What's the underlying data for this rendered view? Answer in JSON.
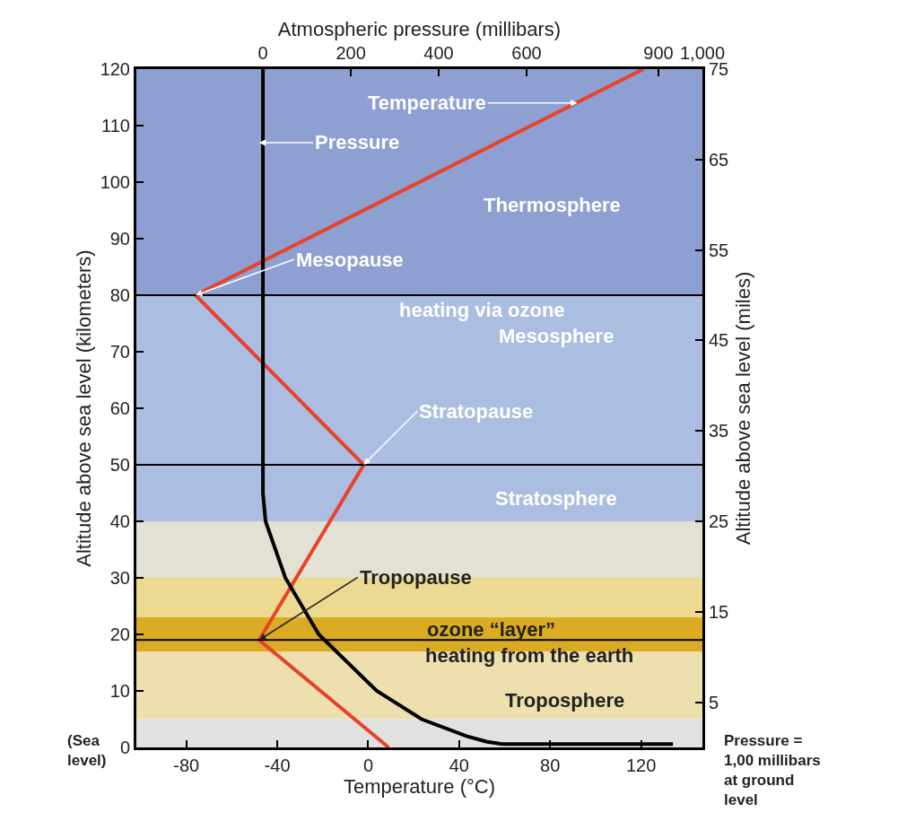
{
  "chart_data": {
    "type": "line",
    "xlabel": "Temperature (°C)",
    "x2label": "Atmospheric pressure (millibars)",
    "ylabel": "Altitude above sea level (kilometers)",
    "y2label": "Altitude above sea level (miles)",
    "xlim": [
      -102,
      147
    ],
    "xticks": [
      -80,
      -40,
      0,
      40,
      80,
      120
    ],
    "x2lim": [
      -288,
      1000
    ],
    "x2ticks": [
      0,
      200,
      400,
      600,
      900,
      {
        "value": 1000,
        "label": "1,000"
      }
    ],
    "ylim": [
      0,
      120
    ],
    "yticks": [
      0,
      10,
      20,
      30,
      40,
      50,
      60,
      70,
      80,
      90,
      100,
      110,
      120
    ],
    "y2lim": [
      0,
      75
    ],
    "y2ticks": [
      5,
      15,
      25,
      35,
      45,
      55,
      65,
      75
    ],
    "series": [
      {
        "color": "#e8432a",
        "x": [
          9,
          -48,
          -2,
          -76,
          121
        ],
        "values": [
          0,
          19,
          50,
          80,
          120
        ]
      },
      {
        "color": "#000000",
        "axis": "x2",
        "x": [
          933,
          545,
          510,
          463,
          361,
          259,
          127,
          51,
          6,
          0,
          0
        ],
        "values": [
          0.6,
          0.6,
          1,
          2,
          5,
          10,
          20,
          30,
          40,
          45,
          120
        ]
      }
    ],
    "bands": [
      {
        "axis": "y",
        "from": 80,
        "to": 120,
        "color": "#8e9fd2"
      },
      {
        "axis": "y",
        "from": 40,
        "to": 80,
        "color": "#acbde2"
      },
      {
        "axis": "y",
        "from": 30,
        "to": 40,
        "color": "#e2e1d4"
      },
      {
        "axis": "y",
        "from": 23,
        "to": 30,
        "color": "#ecd992"
      },
      {
        "axis": "y",
        "from": 17,
        "to": 23,
        "color": "#dcab24"
      },
      {
        "axis": "y",
        "from": 5,
        "to": 17,
        "color": "#eddfae"
      },
      {
        "axis": "y",
        "from": 0,
        "to": 5,
        "color": "#e0e2df"
      }
    ],
    "ref_lines": [
      {
        "axis": "y",
        "value": 80,
        "color": "#000000"
      },
      {
        "axis": "y",
        "value": 50,
        "color": "#000000"
      },
      {
        "axis": "y",
        "value": 19,
        "color": "#000000"
      }
    ],
    "annotations": [
      {
        "text": "Temperature",
        "x": 92,
        "y": 114
      },
      {
        "text": "Pressure",
        "x": -48,
        "y": 107
      },
      "Thermosphere",
      {
        "text": "Mesopause",
        "x": -76,
        "y": 80
      },
      {
        "text": "heating via ozone",
        "x": 50,
        "y": 80
      },
      "Mesosphere",
      {
        "text": "Stratopause",
        "x": -2,
        "y": 50
      },
      "Stratosphere",
      {
        "text": "Tropopause",
        "x": -48,
        "y": 19
      },
      {
        "text": "ozone “layer”",
        "x": 54,
        "y": 22.7
      },
      {
        "text": "heating from the earth",
        "x": 71,
        "y": 16.3
      },
      "Troposphere",
      "(Sea\nlevel)",
      "Pressure =\n1,00 millibars\nat ground\nlevel"
    ]
  }
}
